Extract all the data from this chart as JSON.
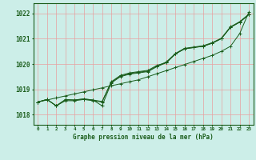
{
  "xlabel": "Graphe pression niveau de la mer (hPa)",
  "xlim": [
    -0.5,
    23.5
  ],
  "ylim": [
    1017.6,
    1022.4
  ],
  "yticks": [
    1018,
    1019,
    1020,
    1021,
    1022
  ],
  "xticks": [
    0,
    1,
    2,
    3,
    4,
    5,
    6,
    7,
    8,
    9,
    10,
    11,
    12,
    13,
    14,
    15,
    16,
    17,
    18,
    19,
    20,
    21,
    22,
    23
  ],
  "background_color": "#cceee8",
  "grid_color": "#e8a0a0",
  "line_color": "#1a5c1a",
  "series": {
    "s_straight": [
      1018.5,
      1018.58,
      1018.66,
      1018.74,
      1018.82,
      1018.9,
      1018.98,
      1019.06,
      1019.14,
      1019.22,
      1019.3,
      1019.38,
      1019.5,
      1019.62,
      1019.74,
      1019.86,
      1019.98,
      1020.1,
      1020.22,
      1020.34,
      1020.5,
      1020.7,
      1021.2,
      1022.05
    ],
    "s_cluster1": [
      1018.5,
      1018.6,
      1018.35,
      1018.55,
      1018.55,
      1018.6,
      1018.55,
      1018.5,
      1019.3,
      1019.55,
      1019.65,
      1019.7,
      1019.75,
      1019.95,
      1020.05,
      1020.4,
      1020.6,
      1020.65,
      1020.7,
      1020.82,
      1021.0,
      1021.45,
      1021.65,
      1021.95
    ],
    "s_cluster2": [
      1018.5,
      1018.6,
      1018.35,
      1018.58,
      1018.58,
      1018.62,
      1018.58,
      1018.52,
      1019.28,
      1019.52,
      1019.62,
      1019.68,
      1019.72,
      1019.92,
      1020.08,
      1020.42,
      1020.62,
      1020.67,
      1020.72,
      1020.84,
      1021.02,
      1021.47,
      1021.67,
      1021.97
    ],
    "s_dip": [
      1018.5,
      1018.6,
      1018.35,
      1018.6,
      1018.58,
      1018.62,
      1018.58,
      1018.35,
      1019.25,
      1019.5,
      1019.6,
      1019.65,
      1019.7,
      1019.9,
      1020.05,
      1020.4,
      1020.6,
      1020.65,
      1020.7,
      1020.82,
      1021.0,
      1021.45,
      1021.65,
      1021.95
    ]
  }
}
